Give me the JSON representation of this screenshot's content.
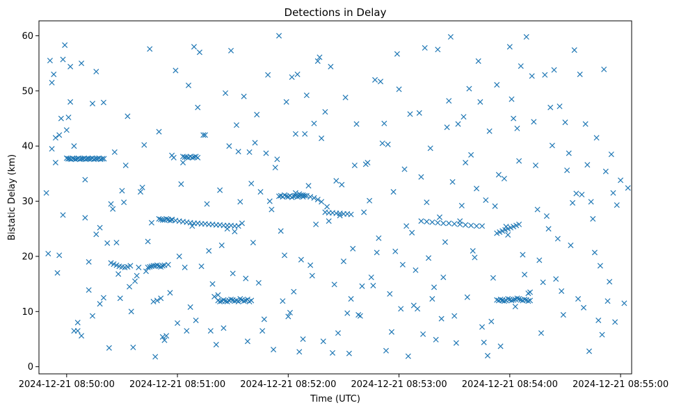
{
  "chart_data": {
    "type": "scatter",
    "title": "Detections in Delay",
    "xlabel": "Time (UTC)",
    "ylabel": "Bistatic Delay (km)",
    "x_unit": "seconds after 2024-12-21 08:49:00 UTC",
    "xlim": [
      45,
      366
    ],
    "ylim": [
      -1.3,
      62.7
    ],
    "xticks": [
      60,
      120,
      180,
      240,
      300,
      360
    ],
    "xtick_labels": [
      "2024-12-21 08:50:00",
      "2024-12-21 08:51:00",
      "2024-12-21 08:52:00",
      "2024-12-21 08:53:00",
      "2024-12-21 08:54:00",
      "2024-12-21 08:55:00"
    ],
    "yticks": [
      0,
      10,
      20,
      30,
      40,
      50,
      60
    ],
    "ytick_labels": [
      "0",
      "10",
      "20",
      "30",
      "40",
      "50",
      "60"
    ],
    "marker": "x",
    "color": "#1f77b4",
    "grid": false,
    "legend": "none",
    "series": [
      {
        "x": [
          60.0,
          60.8,
          61.6,
          62.4,
          63.2,
          64.0,
          64.8,
          65.6,
          66.4,
          67.2,
          68.0,
          68.8,
          69.6,
          70.4,
          71.2,
          72.0,
          73.0,
          73.9,
          74.8,
          75.7,
          76.6,
          77.5,
          78.4,
          79.3,
          80.2,
          84.0,
          85.5,
          87.0,
          88.5,
          90.0,
          91.5,
          93.0,
          94.5,
          104.0,
          105.0,
          106.0,
          107.0,
          108.0,
          109.0,
          110.0,
          111.0,
          112.0,
          113.0,
          110.0,
          111.0,
          112.0,
          113.0,
          114.0,
          115.0,
          116.0,
          117.0,
          117.0,
          119.0,
          121.0,
          123.0,
          125.0,
          127.0,
          129.0,
          131.0,
          133.0,
          135.0,
          137.0,
          139.0,
          141.0,
          143.0,
          145.0,
          147.0,
          149.0,
          151.0,
          153.0,
          123.0,
          124.0,
          125.0,
          126.0,
          127.0,
          128.0,
          129.0,
          130.0,
          131.0,
          142.0,
          143.0,
          144.0,
          145.0,
          146.0,
          147.0,
          148.0,
          149.0,
          150.0,
          151.0,
          152.0,
          153.0,
          154.0,
          155.0,
          156.0,
          157.0,
          158.0,
          159.0,
          160.0,
          184.0,
          186.0,
          188.0,
          190.0,
          192.0,
          194.0,
          196.0,
          198.0,
          200.0,
          202.0,
          204.0,
          206.0,
          208.0,
          210.0,
          212.0,
          214.0,
          175.0,
          176.0,
          177.0,
          178.0,
          179.0,
          180.0,
          181.0,
          182.0,
          183.0,
          184.0,
          185.0,
          186.0,
          187.0,
          188.0,
          189.0,
          252.0,
          255.0,
          258.0,
          261.0,
          264.0,
          267.0,
          270.0,
          273.0,
          276.0,
          279.0,
          282.0,
          285.0,
          293.0,
          294.0,
          295.0,
          296.0,
          297.0,
          298.0,
          299.0,
          300.0,
          301.0,
          302.0,
          303.0,
          304.0,
          305.0,
          306.0,
          307.0,
          308.0,
          309.0,
          310.0,
          311.0,
          293.0,
          294.5,
          296.0,
          297.5,
          299.0,
          300.5,
          302.0,
          303.5,
          305.0,
          51,
          53,
          52,
          54,
          56,
          55,
          57,
          59,
          58,
          50,
          49,
          61,
          62,
          64,
          66,
          68,
          70,
          72,
          74,
          76,
          78,
          80,
          83,
          85,
          87,
          89,
          91,
          93,
          95,
          97,
          99,
          101,
          103,
          105,
          107,
          109,
          111,
          113,
          115,
          117,
          119,
          121,
          123,
          125,
          127,
          129,
          131,
          133,
          135,
          137,
          139,
          141,
          143,
          145,
          147,
          149,
          151,
          153,
          155,
          157,
          159,
          161,
          163,
          165,
          167,
          169,
          171,
          173,
          175,
          177,
          179,
          181,
          183,
          185,
          187,
          189,
          191,
          193,
          195,
          197,
          199,
          201,
          203,
          205,
          207,
          209,
          211,
          213,
          215,
          217,
          219,
          221,
          223,
          225,
          227,
          229,
          231,
          233,
          235,
          237,
          239,
          241,
          243,
          245,
          247,
          249,
          251,
          253,
          255,
          257,
          259,
          261,
          263,
          265,
          267,
          269,
          271,
          273,
          275,
          277,
          279,
          281,
          283,
          285,
          287,
          289,
          291,
          293,
          295,
          297,
          299,
          301,
          303,
          305,
          307,
          309,
          311,
          313,
          315,
          317,
          319,
          321,
          323,
          325,
          327,
          329,
          331,
          333,
          335,
          337,
          339,
          341,
          343,
          345,
          347,
          349,
          351,
          353,
          355,
          357,
          52,
          56,
          60,
          64,
          68,
          72,
          76,
          80,
          84,
          88,
          92,
          96,
          100,
          104,
          108,
          112,
          116,
          120,
          124,
          128,
          132,
          136,
          140,
          144,
          148,
          152,
          156,
          160,
          164,
          168,
          172,
          176,
          180,
          184,
          188,
          192,
          196,
          200,
          204,
          208,
          212,
          216,
          220,
          224,
          228,
          232,
          236,
          240,
          244,
          248,
          252,
          256,
          260,
          264,
          268,
          272,
          276,
          280,
          284,
          288,
          292,
          296,
          300,
          304,
          308,
          312,
          316,
          320,
          324,
          328,
          332,
          336,
          340,
          344,
          348,
          352,
          356,
          360,
          362,
          364,
          54,
          58,
          62,
          66,
          70,
          74,
          78,
          82,
          86,
          90,
          94,
          98,
          102,
          106,
          110,
          114,
          118,
          122,
          126,
          130,
          134,
          138,
          142,
          146,
          150,
          154,
          158,
          162,
          166,
          170,
          174,
          178,
          182,
          186,
          190,
          194,
          198,
          202,
          206,
          210,
          214,
          218,
          222,
          226,
          230,
          234,
          238,
          242,
          246,
          250,
          254,
          258,
          262,
          266,
          270,
          274,
          278,
          282,
          286,
          290,
          294,
          298,
          302,
          306,
          310,
          314,
          318,
          322,
          326,
          330,
          334,
          338,
          342,
          346,
          350,
          354,
          358
        ],
        "y": [
          37.8,
          37.7,
          37.7,
          37.6,
          37.8,
          37.7,
          37.6,
          37.7,
          37.8,
          37.6,
          37.7,
          37.7,
          37.8,
          37.6,
          37.7,
          37.7,
          37.7,
          37.8,
          37.6,
          37.7,
          37.7,
          37.8,
          37.6,
          37.7,
          37.7,
          18.8,
          18.6,
          18.4,
          18.2,
          18.1,
          18.0,
          18.1,
          18.3,
          18.0,
          18.1,
          18.2,
          18.3,
          18.3,
          18.4,
          18.2,
          18.1,
          18.3,
          18.4,
          26.8,
          26.7,
          26.6,
          26.6,
          26.8,
          26.7,
          26.5,
          26.7,
          26.6,
          26.5,
          26.4,
          26.3,
          26.2,
          26.1,
          26.0,
          26.0,
          25.9,
          25.9,
          25.8,
          25.8,
          25.7,
          25.7,
          25.6,
          25.6,
          25.6,
          25.5,
          25.5,
          38.1,
          38.0,
          38.0,
          37.9,
          38.1,
          37.9,
          38.0,
          38.1,
          37.9,
          12.0,
          11.8,
          11.9,
          12.1,
          11.9,
          11.8,
          12.0,
          12.2,
          12.1,
          11.9,
          12.0,
          11.8,
          12.3,
          12.1,
          11.9,
          12.0,
          12.2,
          11.8,
          12.0,
          31.5,
          31.3,
          31.1,
          31.0,
          30.8,
          30.6,
          30.3,
          29.9,
          28.0,
          27.9,
          27.9,
          27.8,
          27.8,
          27.7,
          27.7,
          27.6,
          30.9,
          31.0,
          30.8,
          31.1,
          30.9,
          30.8,
          31.0,
          30.7,
          30.9,
          31.0,
          30.8,
          30.9,
          31.1,
          30.8,
          31.0,
          26.4,
          26.3,
          26.2,
          26.1,
          26.0,
          26.0,
          25.9,
          25.8,
          25.7,
          25.6,
          25.5,
          25.5,
          12.1,
          12.0,
          12.2,
          12.1,
          11.9,
          12.0,
          12.3,
          12.2,
          12.0,
          12.1,
          12.2,
          12.4,
          12.3,
          12.1,
          12.0,
          12.2,
          12.1,
          11.9,
          12.0,
          24.2,
          24.4,
          24.6,
          24.8,
          25.0,
          25.2,
          25.4,
          25.6,
          25.8,
          55.5,
          53.0,
          39.5,
          37.0,
          42.0,
          17.0,
          45.0,
          58.3,
          55.7,
          20.5,
          31.5,
          45.2,
          48.0,
          40.0,
          6.5,
          5.6,
          27.0,
          19.0,
          9.2,
          53.5,
          25.2,
          12.5,
          3.4,
          28.6,
          22.5,
          12.4,
          29.8,
          45.4,
          10.0,
          15.5,
          18.0,
          32.5,
          17.3,
          57.6,
          11.8,
          12.0,
          12.4,
          4.8,
          18.5,
          38.3,
          53.7,
          20.0,
          37.0,
          6.5,
          10.8,
          58.0,
          47.0,
          18.2,
          42.0,
          21.0,
          15.0,
          4.0,
          32.0,
          7.0,
          25.0,
          57.3,
          24.5,
          39.0,
          26.0,
          16.0,
          38.9,
          22.5,
          45.7,
          31.7,
          8.6,
          52.9,
          28.5,
          36.1,
          60.0,
          11.9,
          48.0,
          9.8,
          13.6,
          53.0,
          19.4,
          42.2,
          32.8,
          16.5,
          25.8,
          56.1,
          4.6,
          29.0,
          54.4,
          14.9,
          6.1,
          33.0,
          48.8,
          2.4,
          21.4,
          44.0,
          9.2,
          28.0,
          37.0,
          16.2,
          52.0,
          23.3,
          40.5,
          2.9,
          13.2,
          31.7,
          56.7,
          10.5,
          35.8,
          1.9,
          24.3,
          17.5,
          46.0,
          5.9,
          29.8,
          39.6,
          14.4,
          57.5,
          8.7,
          22.6,
          48.2,
          33.5,
          4.3,
          26.4,
          45.3,
          12.6,
          38.4,
          19.8,
          55.4,
          7.2,
          30.2,
          42.7,
          16.1,
          51.1,
          3.7,
          34.1,
          23.9,
          48.5,
          10.9,
          37.3,
          20.3,
          59.8,
          13.5,
          44.4,
          28.5,
          6.1,
          52.9,
          25.0,
          40.1,
          15.9,
          47.2,
          9.4,
          35.6,
          22.0,
          57.4,
          12.3,
          31.2,
          44.0,
          2.8,
          26.8,
          41.5,
          18.3,
          53.9,
          11.9,
          38.5,
          8.1,
          51.5,
          20.2,
          42.9,
          6.5,
          55.0,
          13.9,
          24.0,
          47.9,
          29.5,
          16.8,
          36.5,
          3.5,
          31.7,
          22.7,
          1.8,
          5.4,
          13.4,
          7.9,
          18.0,
          25.5,
          57.0,
          29.5,
          12.7,
          22.0,
          40.0,
          43.8,
          49.0,
          33.2,
          15.2,
          38.7,
          3.1,
          24.6,
          9.1,
          42.2,
          5.0,
          18.4,
          55.4,
          46.2,
          2.5,
          27.4,
          9.7,
          36.5,
          14.6,
          30.1,
          20.7,
          44.1,
          6.3,
          50.3,
          25.5,
          11.1,
          34.4,
          19.7,
          4.9,
          16.2,
          59.8,
          44.0,
          37.0,
          21.0,
          48.0,
          2.0,
          29.1,
          12.0,
          58.0,
          43.2,
          16.7,
          52.7,
          19.3,
          27.3,
          53.8,
          13.7,
          38.7,
          31.4,
          10.7,
          29.9,
          8.4,
          35.4,
          31.5,
          33.8,
          11.5,
          32.4,
          41.5,
          27.5,
          54.4,
          8.0,
          33.9,
          47.7,
          11.4,
          22.4,
          38.9,
          31.9,
          14.5,
          16.5,
          40.2,
          26.1,
          42.6,
          5.6,
          37.9,
          33.1,
          51.0,
          8.4,
          42.0,
          6.5,
          13.0,
          49.6,
          16.9,
          29.9,
          4.6,
          40.6,
          6.5,
          30.0,
          37.6,
          20.2,
          52.5,
          2.7,
          49.2,
          44.1,
          41.4,
          26.4,
          33.7,
          19.1,
          12.3,
          9.4,
          36.7,
          14.7,
          51.7,
          40.3,
          20.9,
          18.5,
          45.8,
          10.5,
          57.8,
          12.3,
          27.1,
          43.4,
          9.2,
          29.2,
          50.4,
          32.3,
          4.4,
          8.2,
          34.8,
          25.4,
          45.0,
          54.5,
          13.3,
          36.5,
          15.3,
          47.0,
          23.2,
          44.3,
          29.7,
          53.0,
          36.6,
          20.7,
          5.8,
          15.4,
          29.3
        ]
      }
    ]
  }
}
